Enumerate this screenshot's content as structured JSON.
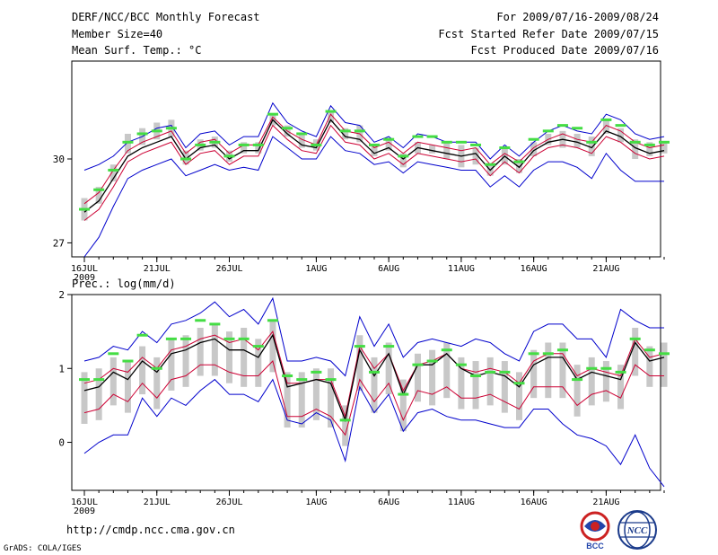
{
  "header": {
    "title": "DERF/NCC/BCC Monthly Forecast",
    "member_size": "Member Size=40",
    "variable": "Mean Surf. Temp.: °C",
    "period": "For 2009/07/16-2009/08/24",
    "started": "Fcst Started Refer Date 2009/07/15",
    "produced": "Fcst Produced Date 2009/07/16"
  },
  "footer": {
    "url": "http://cmdp.ncc.cma.gov.cn",
    "credit": "GrADS: COLA/IGES",
    "bcc_logo_text": "BCC",
    "ncc_logo_text": "NCC"
  },
  "colors": {
    "box": "#c8c8c8",
    "green": "#44dd44",
    "blue": "#0000cc",
    "red": "#cc0033",
    "black": "#000000"
  },
  "chart_data": [
    {
      "type": "line",
      "title": "Mean Surf. Temp.: °C",
      "ylim": [
        26.5,
        33.5
      ],
      "yticks": [
        27,
        30
      ],
      "xticks": [
        {
          "day": 0,
          "label": "16JUL"
        },
        {
          "day": 5,
          "label": "21JUL"
        },
        {
          "day": 10,
          "label": "26JUL"
        },
        {
          "day": 16,
          "label": "1AUG"
        },
        {
          "day": 21,
          "label": "6AUG"
        },
        {
          "day": 26,
          "label": "11AUG"
        },
        {
          "day": 31,
          "label": "16AUG"
        },
        {
          "day": 36,
          "label": "21AUG"
        }
      ],
      "year_label": "2009",
      "series": [
        {
          "name": "ensemble max",
          "color": "blue",
          "values": [
            29.6,
            29.8,
            30.1,
            30.6,
            30.8,
            31.1,
            31.2,
            30.4,
            30.9,
            31.0,
            30.5,
            30.8,
            30.8,
            32.0,
            31.3,
            31.0,
            30.8,
            31.9,
            31.3,
            31.2,
            30.6,
            30.8,
            30.4,
            30.9,
            30.8,
            30.6,
            30.6,
            30.6,
            30.0,
            30.5,
            30.1,
            30.6,
            31.0,
            31.2,
            31.0,
            30.9,
            31.6,
            31.4,
            30.9,
            30.7,
            30.8
          ]
        },
        {
          "name": "upper red",
          "color": "red",
          "values": [
            28.4,
            28.8,
            29.6,
            30.3,
            30.6,
            30.8,
            31.0,
            30.2,
            30.6,
            30.7,
            30.2,
            30.5,
            30.5,
            31.5,
            31.0,
            30.7,
            30.5,
            31.6,
            31.0,
            30.9,
            30.4,
            30.6,
            30.2,
            30.6,
            30.5,
            30.4,
            30.3,
            30.4,
            29.8,
            30.2,
            29.9,
            30.4,
            30.7,
            30.9,
            30.7,
            30.6,
            31.2,
            31.0,
            30.6,
            30.4,
            30.5
          ]
        },
        {
          "name": "ensemble mean",
          "color": "black",
          "values": [
            28.1,
            28.5,
            29.3,
            30.1,
            30.4,
            30.6,
            30.8,
            30.0,
            30.4,
            30.5,
            30.0,
            30.3,
            30.3,
            31.4,
            30.9,
            30.5,
            30.4,
            31.4,
            30.8,
            30.7,
            30.2,
            30.4,
            30.0,
            30.4,
            30.3,
            30.2,
            30.1,
            30.2,
            29.6,
            30.1,
            29.7,
            30.3,
            30.6,
            30.7,
            30.6,
            30.4,
            31.0,
            30.8,
            30.4,
            30.2,
            30.3
          ]
        },
        {
          "name": "lower red",
          "color": "red",
          "values": [
            27.8,
            28.2,
            29.0,
            29.9,
            30.2,
            30.4,
            30.6,
            29.8,
            30.2,
            30.3,
            29.8,
            30.1,
            30.1,
            31.2,
            30.7,
            30.3,
            30.2,
            31.2,
            30.6,
            30.5,
            30.0,
            30.2,
            29.8,
            30.2,
            30.1,
            30.0,
            29.9,
            30.0,
            29.4,
            29.9,
            29.5,
            30.1,
            30.4,
            30.5,
            30.4,
            30.2,
            30.8,
            30.6,
            30.2,
            30.0,
            30.1
          ]
        },
        {
          "name": "ensemble min",
          "color": "blue",
          "values": [
            26.5,
            27.2,
            28.3,
            29.3,
            29.6,
            29.8,
            30.0,
            29.4,
            29.6,
            29.8,
            29.6,
            29.7,
            29.6,
            30.8,
            30.4,
            30.0,
            30.0,
            30.8,
            30.3,
            30.2,
            29.8,
            29.9,
            29.5,
            29.9,
            29.8,
            29.7,
            29.6,
            29.6,
            29.0,
            29.4,
            29.0,
            29.6,
            29.9,
            29.9,
            29.7,
            29.3,
            30.2,
            29.6,
            29.2,
            29.2,
            29.2
          ]
        }
      ],
      "observed": [
        28.2,
        28.9,
        29.6,
        30.6,
        30.9,
        31.0,
        31.1,
        30.0,
        30.5,
        30.6,
        30.1,
        30.5,
        30.5,
        31.6,
        31.1,
        30.9,
        30.5,
        31.7,
        31.0,
        31.0,
        30.5,
        30.7,
        30.1,
        30.8,
        30.8,
        30.6,
        30.6,
        30.5,
        29.8,
        30.4,
        29.9,
        30.7,
        31.0,
        31.2,
        31.1,
        30.6,
        31.4,
        31.2,
        30.6,
        30.5,
        30.6
      ],
      "boxes": [
        [
          27.8,
          28.6
        ],
        [
          28.4,
          29.0
        ],
        [
          29.2,
          29.8
        ],
        [
          30.2,
          30.9
        ],
        [
          30.5,
          31.1
        ],
        [
          30.7,
          31.3
        ],
        [
          30.8,
          31.4
        ],
        [
          29.8,
          30.3
        ],
        [
          30.3,
          30.7
        ],
        [
          30.4,
          30.8
        ],
        [
          29.9,
          30.3
        ],
        [
          30.2,
          30.6
        ],
        [
          30.2,
          30.6
        ],
        [
          31.2,
          31.6
        ],
        [
          30.8,
          31.2
        ],
        [
          30.4,
          30.9
        ],
        [
          30.3,
          30.7
        ],
        [
          31.3,
          31.7
        ],
        [
          30.7,
          31.1
        ],
        [
          30.6,
          31.2
        ],
        [
          30.1,
          30.5
        ],
        [
          30.3,
          30.7
        ],
        [
          29.7,
          30.2
        ],
        [
          30.2,
          30.6
        ],
        [
          30.2,
          30.5
        ],
        [
          30.0,
          30.6
        ],
        [
          29.7,
          30.5
        ],
        [
          29.8,
          30.4
        ],
        [
          29.4,
          29.8
        ],
        [
          29.8,
          30.4
        ],
        [
          29.5,
          30.0
        ],
        [
          30.1,
          30.6
        ],
        [
          30.5,
          30.9
        ],
        [
          30.4,
          31.0
        ],
        [
          30.4,
          30.9
        ],
        [
          30.1,
          30.8
        ],
        [
          30.9,
          31.4
        ],
        [
          30.6,
          31.1
        ],
        [
          30.0,
          30.7
        ],
        [
          30.1,
          30.6
        ],
        [
          30.2,
          30.6
        ]
      ]
    },
    {
      "type": "line",
      "title": "Prec.: log(mm/d)",
      "ylim": [
        -0.65,
        2.0
      ],
      "yticks": [
        0,
        1,
        2
      ],
      "xticks": [
        {
          "day": 0,
          "label": "16JUL"
        },
        {
          "day": 5,
          "label": "21JUL"
        },
        {
          "day": 10,
          "label": "26JUL"
        },
        {
          "day": 16,
          "label": "1AUG"
        },
        {
          "day": 21,
          "label": "6AUG"
        },
        {
          "day": 26,
          "label": "11AUG"
        },
        {
          "day": 31,
          "label": "16AUG"
        },
        {
          "day": 36,
          "label": "21AUG"
        }
      ],
      "year_label": "2009",
      "series": [
        {
          "name": "ensemble max",
          "color": "blue",
          "values": [
            1.1,
            1.15,
            1.3,
            1.25,
            1.5,
            1.35,
            1.6,
            1.65,
            1.75,
            1.9,
            1.7,
            1.8,
            1.6,
            1.95,
            1.1,
            1.1,
            1.15,
            1.1,
            0.9,
            1.7,
            1.3,
            1.6,
            1.15,
            1.35,
            1.4,
            1.35,
            1.3,
            1.4,
            1.35,
            1.2,
            1.1,
            1.5,
            1.6,
            1.6,
            1.4,
            1.4,
            1.15,
            1.8,
            1.65,
            1.55,
            1.55
          ]
        },
        {
          "name": "upper red",
          "color": "red",
          "values": [
            0.8,
            0.85,
            1.0,
            0.95,
            1.15,
            1.0,
            1.25,
            1.3,
            1.4,
            1.45,
            1.35,
            1.4,
            1.25,
            1.5,
            0.8,
            0.8,
            0.85,
            0.85,
            0.35,
            1.3,
            1.0,
            1.2,
            0.7,
            1.05,
            1.1,
            1.2,
            1.0,
            0.95,
            1.0,
            0.95,
            0.8,
            1.1,
            1.2,
            1.2,
            0.9,
            1.0,
            0.95,
            0.9,
            1.4,
            1.15,
            1.2
          ]
        },
        {
          "name": "ensemble mean",
          "color": "black",
          "values": [
            0.7,
            0.75,
            0.95,
            0.85,
            1.1,
            0.95,
            1.2,
            1.25,
            1.35,
            1.4,
            1.25,
            1.25,
            1.15,
            1.45,
            0.75,
            0.8,
            0.85,
            0.8,
            0.3,
            1.25,
            0.9,
            1.2,
            0.65,
            1.05,
            1.05,
            1.2,
            1.0,
            0.9,
            0.95,
            0.9,
            0.75,
            1.05,
            1.15,
            1.15,
            0.85,
            0.95,
            0.9,
            0.85,
            1.35,
            1.1,
            1.15
          ]
        },
        {
          "name": "lower red",
          "color": "red",
          "values": [
            0.4,
            0.45,
            0.65,
            0.55,
            0.8,
            0.6,
            0.85,
            0.9,
            1.05,
            1.05,
            0.95,
            0.9,
            0.9,
            1.1,
            0.35,
            0.35,
            0.45,
            0.35,
            0.1,
            0.85,
            0.55,
            0.8,
            0.3,
            0.7,
            0.65,
            0.75,
            0.6,
            0.6,
            0.65,
            0.55,
            0.45,
            0.75,
            0.75,
            0.75,
            0.5,
            0.65,
            0.7,
            0.6,
            1.05,
            0.9,
            0.9
          ]
        },
        {
          "name": "ensemble min",
          "color": "blue",
          "values": [
            -0.15,
            0.0,
            0.1,
            0.1,
            0.6,
            0.35,
            0.6,
            0.5,
            0.7,
            0.85,
            0.65,
            0.65,
            0.55,
            0.85,
            0.3,
            0.25,
            0.4,
            0.3,
            -0.25,
            0.75,
            0.4,
            0.65,
            0.15,
            0.4,
            0.45,
            0.35,
            0.3,
            0.3,
            0.25,
            0.2,
            0.2,
            0.45,
            0.45,
            0.25,
            0.1,
            0.05,
            -0.05,
            -0.3,
            0.1,
            -0.35,
            -0.6
          ]
        }
      ],
      "observed": [
        0.85,
        0.85,
        1.2,
        1.1,
        1.45,
        1.0,
        1.4,
        1.4,
        1.65,
        1.6,
        1.4,
        1.4,
        1.3,
        1.65,
        0.9,
        0.85,
        0.95,
        0.85,
        0.3,
        1.3,
        0.95,
        1.3,
        0.65,
        1.05,
        1.1,
        1.25,
        1.05,
        0.9,
        0.95,
        0.95,
        0.8,
        1.2,
        1.2,
        1.25,
        0.85,
        1.0,
        1.0,
        0.95,
        1.4,
        1.25,
        1.2
      ]
    }
  ]
}
